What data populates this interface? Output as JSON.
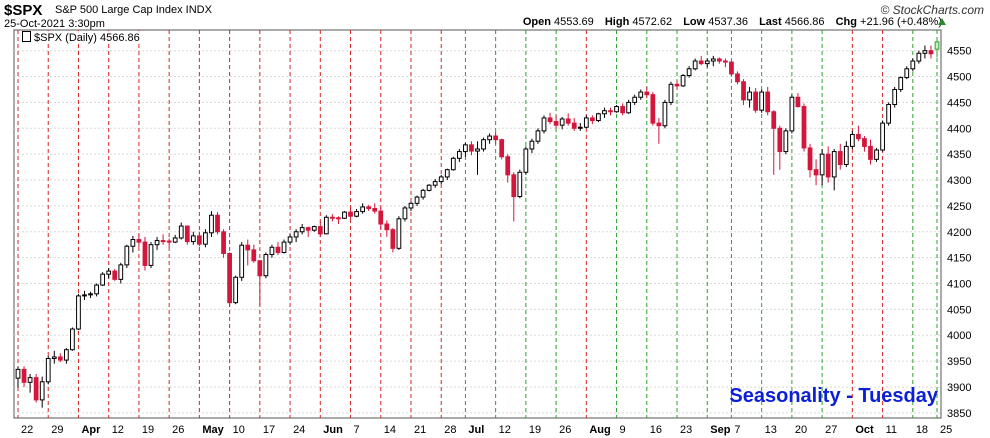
{
  "header": {
    "symbol": "$SPX",
    "description": "S&P 500 Large Cap Index INDX",
    "datetime": "25-Oct-2021 3:30pm",
    "brand": "© StockCharts.com",
    "open_label": "Open",
    "open": "4553.69",
    "high_label": "High",
    "high": "4572.62",
    "low_label": "Low",
    "low": "4537.36",
    "last_label": "Last",
    "last": "4566.86",
    "chg_label": "Chg",
    "chg": "+21.96 (+0.48%)"
  },
  "legend": {
    "text": "$SPX (Daily) 4566.86"
  },
  "annotation": "Seasonality - Tuesday",
  "colors": {
    "up": "#000000",
    "down": "#d4163c",
    "last_bar": "#2ca02c",
    "vline_red": "#d62728",
    "vline_green": "#2ca02c",
    "grid": "#d8d8d8",
    "annotation": "#0b1fd6"
  },
  "chart_data": {
    "type": "candlestick",
    "title": "$SPX S&P 500 Large Cap Index INDX",
    "ylim": [
      3840,
      4590
    ],
    "y_ticks": [
      3850,
      3900,
      3950,
      4000,
      4050,
      4100,
      4150,
      4200,
      4250,
      4300,
      4350,
      4400,
      4450,
      4500,
      4550
    ],
    "x_tick_labels": [
      "22",
      "29",
      "Apr",
      "12",
      "19",
      "26",
      "May",
      "10",
      "17",
      "24",
      "Jun",
      "7",
      "14",
      "21",
      "28",
      "Jul",
      "12",
      "19",
      "26",
      "Aug",
      "9",
      "16",
      "23",
      "Sep",
      "7",
      "13",
      "20",
      "27",
      "Oct",
      "11",
      "18",
      "25"
    ],
    "x_tick_day_index": [
      0,
      5,
      10,
      15,
      20,
      25,
      30,
      35,
      40,
      45,
      50,
      55,
      60,
      65,
      70,
      74,
      79,
      84,
      89,
      94,
      99,
      104,
      109,
      114,
      118,
      123,
      128,
      133,
      138,
      143,
      148,
      153
    ],
    "vertical_lines": "dashed line at each Tuesday; red or green",
    "bars": [
      [
        3917,
        3939,
        3899,
        3934
      ],
      [
        3934,
        3940,
        3900,
        3909
      ],
      [
        3909,
        3925,
        3889,
        3918
      ],
      [
        3918,
        3925,
        3870,
        3875
      ],
      [
        3875,
        3920,
        3860,
        3910
      ],
      [
        3910,
        3960,
        3905,
        3955
      ],
      [
        3955,
        3970,
        3945,
        3958
      ],
      [
        3958,
        3965,
        3948,
        3952
      ],
      [
        3952,
        3975,
        3945,
        3972
      ],
      [
        3972,
        4015,
        3970,
        4012
      ],
      [
        4012,
        4080,
        4010,
        4076
      ],
      [
        4076,
        4086,
        4068,
        4078
      ],
      [
        4078,
        4084,
        4072,
        4080
      ],
      [
        4080,
        4100,
        4075,
        4097
      ],
      [
        4097,
        4122,
        4095,
        4118
      ],
      [
        4118,
        4130,
        4110,
        4124
      ],
      [
        4124,
        4128,
        4105,
        4108
      ],
      [
        4108,
        4140,
        4100,
        4136
      ],
      [
        4136,
        4175,
        4130,
        4172
      ],
      [
        4172,
        4192,
        4160,
        4185
      ],
      [
        4185,
        4195,
        4170,
        4180
      ],
      [
        4180,
        4190,
        4125,
        4135
      ],
      [
        4135,
        4180,
        4130,
        4175
      ],
      [
        4175,
        4190,
        4165,
        4183
      ],
      [
        4183,
        4195,
        4175,
        4182
      ],
      [
        4182,
        4187,
        4170,
        4180
      ],
      [
        4180,
        4194,
        4178,
        4188
      ],
      [
        4188,
        4218,
        4185,
        4211
      ],
      [
        4211,
        4212,
        4175,
        4181
      ],
      [
        4181,
        4200,
        4175,
        4192
      ],
      [
        4192,
        4200,
        4172,
        4176
      ],
      [
        4176,
        4205,
        4170,
        4198
      ],
      [
        4198,
        4240,
        4190,
        4232
      ],
      [
        4232,
        4238,
        4195,
        4200
      ],
      [
        4200,
        4205,
        4150,
        4158
      ],
      [
        4158,
        4160,
        4055,
        4063
      ],
      [
        4063,
        4115,
        4060,
        4112
      ],
      [
        4112,
        4180,
        4105,
        4174
      ],
      [
        4174,
        4185,
        4135,
        4165
      ],
      [
        4165,
        4175,
        4140,
        4144
      ],
      [
        4144,
        4145,
        4058,
        4115
      ],
      [
        4115,
        4160,
        4110,
        4156
      ],
      [
        4156,
        4175,
        4150,
        4170
      ],
      [
        4170,
        4180,
        4155,
        4160
      ],
      [
        4160,
        4185,
        4158,
        4180
      ],
      [
        4180,
        4195,
        4175,
        4190
      ],
      [
        4190,
        4205,
        4180,
        4200
      ],
      [
        4200,
        4215,
        4195,
        4208
      ],
      [
        4208,
        4210,
        4190,
        4203
      ],
      [
        4203,
        4212,
        4200,
        4210
      ],
      [
        4210,
        4220,
        4190,
        4196
      ],
      [
        4196,
        4232,
        4195,
        4228
      ],
      [
        4228,
        4234,
        4220,
        4227
      ],
      [
        4227,
        4230,
        4215,
        4226
      ],
      [
        4226,
        4240,
        4225,
        4238
      ],
      [
        4238,
        4245,
        4225,
        4230
      ],
      [
        4230,
        4244,
        4228,
        4239
      ],
      [
        4239,
        4255,
        4235,
        4248
      ],
      [
        4248,
        4252,
        4240,
        4245
      ],
      [
        4245,
        4255,
        4235,
        4240
      ],
      [
        4240,
        4248,
        4205,
        4215
      ],
      [
        4215,
        4222,
        4190,
        4204
      ],
      [
        4204,
        4207,
        4160,
        4168
      ],
      [
        4168,
        4230,
        4165,
        4225
      ],
      [
        4225,
        4250,
        4220,
        4246
      ],
      [
        4246,
        4258,
        4240,
        4255
      ],
      [
        4255,
        4270,
        4250,
        4267
      ],
      [
        4267,
        4283,
        4262,
        4280
      ],
      [
        4280,
        4292,
        4278,
        4290
      ],
      [
        4290,
        4302,
        4285,
        4297
      ],
      [
        4297,
        4310,
        4292,
        4306
      ],
      [
        4306,
        4322,
        4300,
        4320
      ],
      [
        4320,
        4345,
        4318,
        4342
      ],
      [
        4342,
        4360,
        4335,
        4355
      ],
      [
        4355,
        4372,
        4345,
        4368
      ],
      [
        4368,
        4375,
        4348,
        4356
      ],
      [
        4356,
        4375,
        4310,
        4360
      ],
      [
        4360,
        4382,
        4355,
        4378
      ],
      [
        4378,
        4390,
        4370,
        4385
      ],
      [
        4385,
        4393,
        4370,
        4378
      ],
      [
        4378,
        4380,
        4340,
        4345
      ],
      [
        4345,
        4350,
        4295,
        4310
      ],
      [
        4310,
        4315,
        4220,
        4268
      ],
      [
        4268,
        4320,
        4265,
        4315
      ],
      [
        4315,
        4365,
        4310,
        4360
      ],
      [
        4360,
        4380,
        4352,
        4375
      ],
      [
        4375,
        4400,
        4370,
        4395
      ],
      [
        4395,
        4425,
        4390,
        4420
      ],
      [
        4420,
        4430,
        4408,
        4413
      ],
      [
        4413,
        4425,
        4400,
        4406
      ],
      [
        4406,
        4422,
        4398,
        4418
      ],
      [
        4418,
        4429,
        4405,
        4410
      ],
      [
        4410,
        4420,
        4395,
        4400
      ],
      [
        4400,
        4410,
        4395,
        4402
      ],
      [
        4402,
        4425,
        4400,
        4420
      ],
      [
        4420,
        4425,
        4408,
        4415
      ],
      [
        4415,
        4430,
        4412,
        4428
      ],
      [
        4428,
        4440,
        4420,
        4434
      ],
      [
        4434,
        4440,
        4425,
        4432
      ],
      [
        4432,
        4445,
        4430,
        4442
      ],
      [
        4442,
        4448,
        4425,
        4430
      ],
      [
        4430,
        4455,
        4428,
        4450
      ],
      [
        4450,
        4465,
        4445,
        4460
      ],
      [
        4460,
        4475,
        4455,
        4470
      ],
      [
        4470,
        4480,
        4458,
        4465
      ],
      [
        4465,
        4470,
        4405,
        4410
      ],
      [
        4410,
        4420,
        4370,
        4405
      ],
      [
        4405,
        4455,
        4400,
        4450
      ],
      [
        4450,
        4490,
        4445,
        4485
      ],
      [
        4485,
        4492,
        4475,
        4482
      ],
      [
        4482,
        4505,
        4480,
        4502
      ],
      [
        4502,
        4520,
        4498,
        4515
      ],
      [
        4515,
        4535,
        4512,
        4530
      ],
      [
        4530,
        4540,
        4522,
        4525
      ],
      [
        4525,
        4535,
        4518,
        4530
      ],
      [
        4530,
        4540,
        4520,
        4534
      ],
      [
        4534,
        4537,
        4525,
        4530
      ],
      [
        4530,
        4535,
        4518,
        4528
      ],
      [
        4528,
        4530,
        4500,
        4505
      ],
      [
        4505,
        4510,
        4485,
        4490
      ],
      [
        4490,
        4495,
        4445,
        4455
      ],
      [
        4455,
        4480,
        4440,
        4470
      ],
      [
        4470,
        4478,
        4430,
        4435
      ],
      [
        4435,
        4475,
        4430,
        4470
      ],
      [
        4470,
        4480,
        4425,
        4432
      ],
      [
        4432,
        4435,
        4310,
        4400
      ],
      [
        4400,
        4405,
        4320,
        4355
      ],
      [
        4355,
        4400,
        4350,
        4395
      ],
      [
        4395,
        4465,
        4390,
        4460
      ],
      [
        4460,
        4468,
        4440,
        4442
      ],
      [
        4442,
        4448,
        4355,
        4362
      ],
      [
        4362,
        4370,
        4305,
        4320
      ],
      [
        4320,
        4340,
        4290,
        4310
      ],
      [
        4310,
        4360,
        4290,
        4350
      ],
      [
        4350,
        4365,
        4295,
        4306
      ],
      [
        4306,
        4360,
        4280,
        4355
      ],
      [
        4355,
        4370,
        4320,
        4330
      ],
      [
        4330,
        4375,
        4325,
        4365
      ],
      [
        4365,
        4395,
        4360,
        4388
      ],
      [
        4388,
        4405,
        4375,
        4380
      ],
      [
        4380,
        4385,
        4355,
        4365
      ],
      [
        4365,
        4378,
        4330,
        4340
      ],
      [
        4340,
        4362,
        4335,
        4358
      ],
      [
        4358,
        4415,
        4355,
        4410
      ],
      [
        4410,
        4450,
        4405,
        4446
      ],
      [
        4446,
        4480,
        4440,
        4475
      ],
      [
        4475,
        4500,
        4470,
        4498
      ],
      [
        4498,
        4520,
        4495,
        4515
      ],
      [
        4515,
        4535,
        4510,
        4530
      ],
      [
        4530,
        4550,
        4525,
        4545
      ],
      [
        4545,
        4560,
        4535,
        4550
      ],
      [
        4550,
        4560,
        4535,
        4544
      ],
      [
        4553,
        4572,
        4537,
        4567
      ]
    ]
  }
}
